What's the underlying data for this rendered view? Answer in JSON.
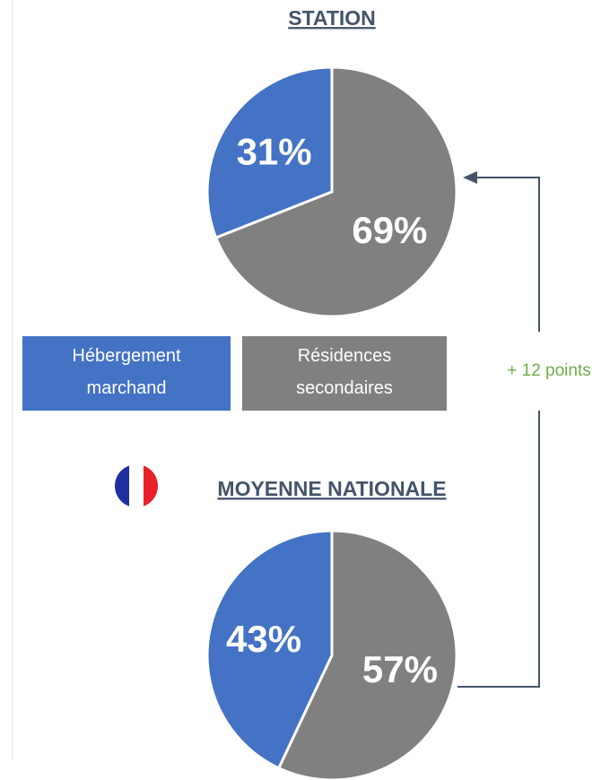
{
  "chart_data": {
    "type": "pie",
    "categories": [
      "Hébergement marchand",
      "Résidences secondaires"
    ],
    "colors": [
      "#4472c4",
      "#808080"
    ],
    "series": [
      {
        "name": "STATION",
        "values": [
          31,
          69
        ],
        "value_labels": [
          "31%",
          "69%"
        ]
      },
      {
        "name": "MOYENNE NATIONALE",
        "values": [
          43,
          57
        ],
        "value_labels": [
          "43%",
          "57%"
        ]
      }
    ],
    "annotation": "+ 12 points"
  }
}
